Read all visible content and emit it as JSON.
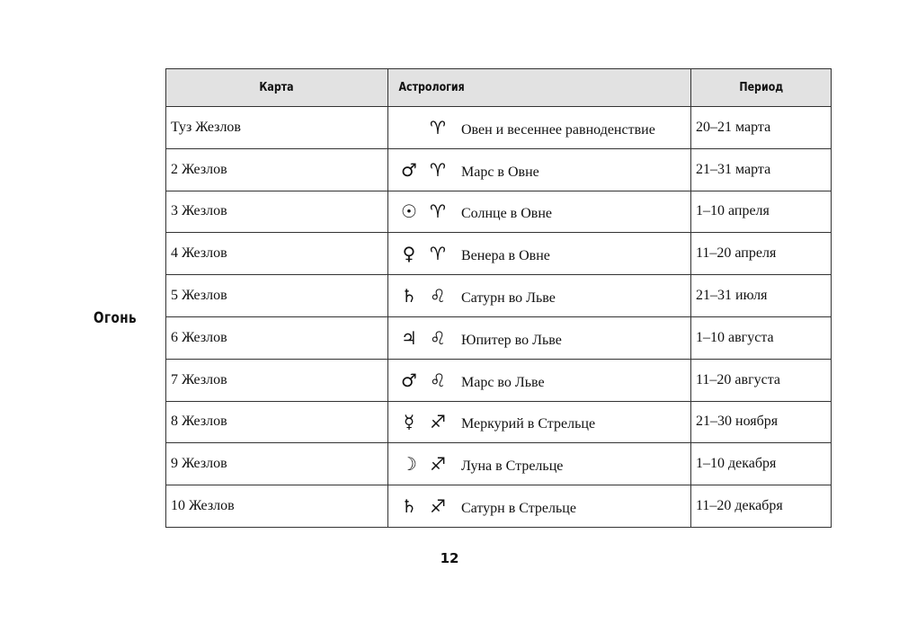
{
  "element": "Огонь",
  "headers": {
    "card": "Карта",
    "astrology": "Астрология",
    "period": "Период"
  },
  "rows": [
    {
      "card": "Туз Жезлов",
      "planet": "",
      "sign": "♈",
      "astro": "Овен и весеннее равноденствие",
      "period": "20–21 марта"
    },
    {
      "card": "2 Жезлов",
      "planet": "♂",
      "sign": "♈",
      "astro": "Марс в Овне",
      "period": "21–31 марта"
    },
    {
      "card": "3 Жезлов",
      "planet": "☉",
      "sign": "♈",
      "astro": "Солнце в Овне",
      "period": "1–10 апреля"
    },
    {
      "card": "4 Жезлов",
      "planet": "♀",
      "sign": "♈",
      "astro": "Венера в Овне",
      "period": "11–20 апреля"
    },
    {
      "card": "5 Жезлов",
      "planet": "♄",
      "sign": "♌",
      "astro": "Сатурн во Льве",
      "period": "21–31 июля"
    },
    {
      "card": "6 Жезлов",
      "planet": "♃",
      "sign": "♌",
      "astro": "Юпитер во Льве",
      "period": "1–10 августа"
    },
    {
      "card": "7 Жезлов",
      "planet": "♂",
      "sign": "♌",
      "astro": "Марс во Льве",
      "period": "11–20 августа"
    },
    {
      "card": "8 Жезлов",
      "planet": "☿",
      "sign": "♐",
      "astro": "Меркурий в Стрельце",
      "period": "21–30 ноября"
    },
    {
      "card": "9 Жезлов",
      "planet": "☽",
      "sign": "♐",
      "astro": "Луна в Стрельце",
      "period": "1–10 декабря"
    },
    {
      "card": "10 Жезлов",
      "planet": "♄",
      "sign": "♐",
      "astro": "Сатурн в Стрельце",
      "period": "11–20 декабря"
    }
  ],
  "page_number": "12"
}
